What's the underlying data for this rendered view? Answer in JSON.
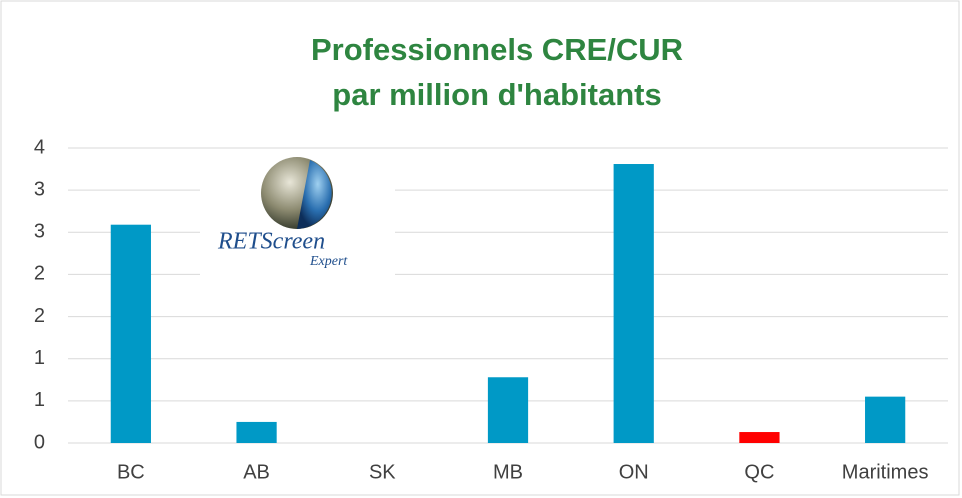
{
  "chart_data": {
    "type": "bar",
    "title": "Professionnels CRE/CUR",
    "subtitle": "par million d'habitants",
    "logo": {
      "text": "RETScreen",
      "subtext": "Expert"
    },
    "categories": [
      "BC",
      "AB",
      "SK",
      "MB",
      "ON",
      "QC",
      "Maritimes"
    ],
    "values": [
      2.59,
      0.25,
      0,
      0.78,
      3.31,
      0.13,
      0.55
    ],
    "colors": [
      "#0099c6",
      "#0099c6",
      "#0099c6",
      "#0099c6",
      "#0099c6",
      "#ff0000",
      "#0099c6"
    ],
    "ylim": [
      0,
      3.5
    ],
    "yticks": [
      0,
      {
        "value": 0.5,
        "label": "1"
      },
      1,
      {
        "value": 1.5,
        "label": "2"
      },
      2,
      {
        "value": 2.5,
        "label": "3"
      },
      3,
      {
        "value": 3.5,
        "label": "4"
      }
    ],
    "grid": true
  }
}
